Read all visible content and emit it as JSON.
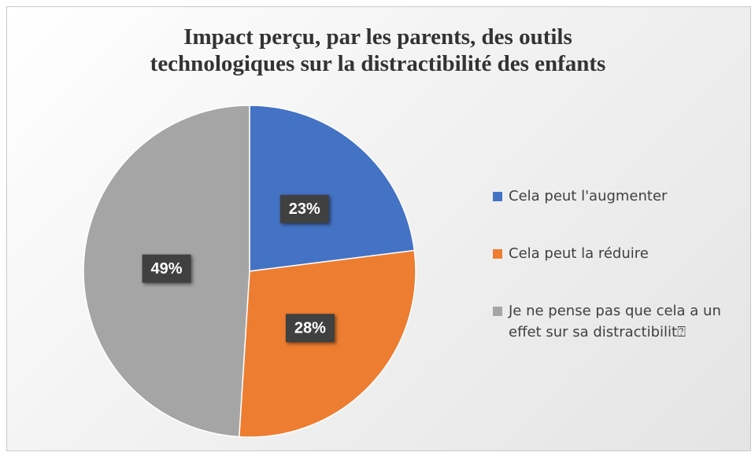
{
  "chart_data": {
    "type": "pie",
    "title": "Impact perçu, par les parents, des outils technologiques sur la distractibilité des enfants",
    "categories": [
      "Cela peut l'augmenter",
      "Cela peut la réduire",
      "Je ne pense pas que cela a un effet sur sa distractibilit⍰"
    ],
    "values": [
      23,
      28,
      49
    ],
    "value_labels": [
      "23%",
      "28%",
      "49%"
    ],
    "colors": [
      "#4472c4",
      "#ed7d31",
      "#a5a5a5"
    ],
    "legend": "right"
  }
}
